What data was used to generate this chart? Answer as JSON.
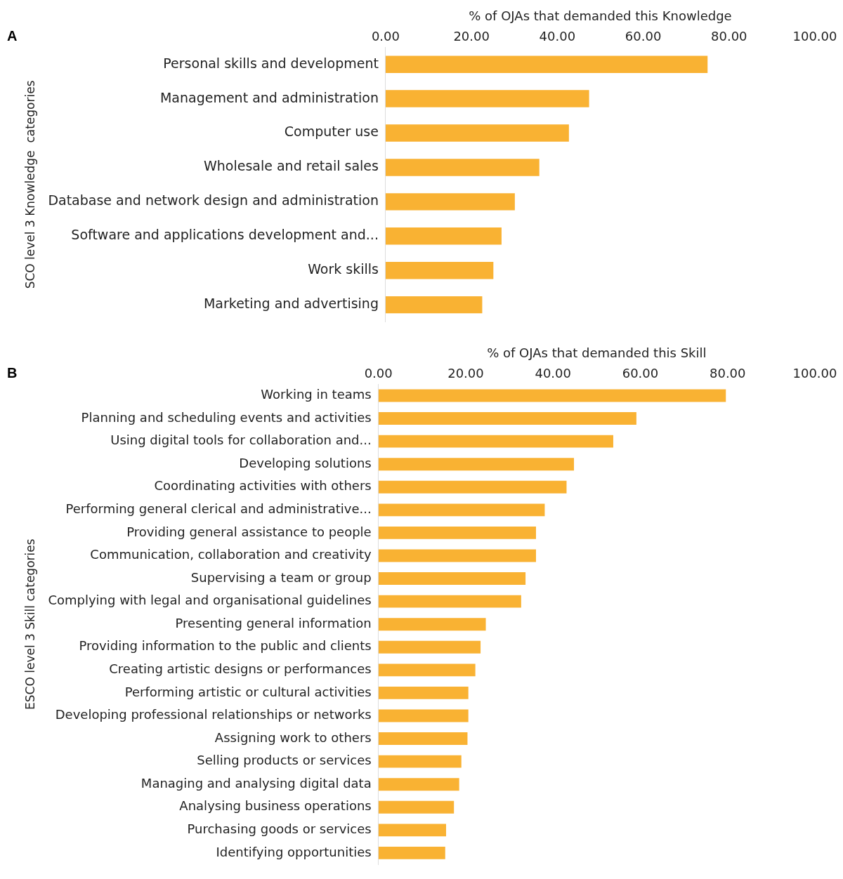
{
  "chart_data": [
    {
      "type": "bar",
      "orientation": "horizontal",
      "annotations": [
        "A"
      ],
      "xlabel": "% of OJAs that demanded this Knowledge",
      "ylabel": "SCO level 3 Knowledge  categories",
      "categories": [
        "Personal skills and development",
        "Management and administration",
        "Computer use",
        "Wholesale and retail sales",
        "Database and network design and administration",
        "Software and applications development and...",
        "Work skills",
        "Marketing and advertising"
      ],
      "values": [
        75.0,
        47.4,
        42.7,
        35.8,
        30.1,
        27.0,
        25.1,
        22.5
      ],
      "color": "#f9b233",
      "xlim": [
        0,
        100
      ],
      "xticks": [
        {
          "value": 0,
          "label": "0.00"
        },
        {
          "value": 20,
          "label": "20.00"
        },
        {
          "value": 40,
          "label": "40.00"
        },
        {
          "value": 60,
          "label": "60.00"
        },
        {
          "value": 80,
          "label": "80.00"
        },
        {
          "value": 100,
          "label": "100.00"
        }
      ],
      "grid": false,
      "legend": false
    },
    {
      "type": "bar",
      "orientation": "horizontal",
      "annotations": [
        "B"
      ],
      "xlabel": "% of OJAs that demanded this Skill",
      "ylabel": "ESCO level 3 Skill categories",
      "categories": [
        "Working in teams",
        "Planning and scheduling events and activities",
        "Using digital tools for collaboration and...",
        "Developing solutions",
        "Coordinating activities with others",
        "Performing general clerical and administrative...",
        "Providing general assistance to people",
        "Communication, collaboration and creativity",
        "Supervising a team or group",
        "Complying with legal and organisational guidelines",
        "Presenting general information",
        "Providing information to the public and clients",
        "Creating artistic designs or performances",
        "Performing artistic or cultural activities",
        "Developing professional relationships or networks",
        "Assigning work to others",
        "Selling products or services",
        "Managing and analysing digital data",
        "Analysing business operations",
        "Purchasing goods or services",
        "Identifying opportunities"
      ],
      "values": [
        79.6,
        59.1,
        53.8,
        44.8,
        43.1,
        38.1,
        36.1,
        36.1,
        33.7,
        32.7,
        24.6,
        23.4,
        22.2,
        20.6,
        20.6,
        20.4,
        19.0,
        18.5,
        17.3,
        15.5,
        15.3
      ],
      "color": "#f9b233",
      "xlim": [
        0,
        100
      ],
      "xticks": [
        {
          "value": 0,
          "label": "0.00"
        },
        {
          "value": 20,
          "label": "20.00"
        },
        {
          "value": 40,
          "label": "40.00"
        },
        {
          "value": 60,
          "label": "60.00"
        },
        {
          "value": 80,
          "label": "80.00"
        },
        {
          "value": 100,
          "label": "100.00"
        }
      ],
      "grid": false,
      "legend": false
    }
  ]
}
